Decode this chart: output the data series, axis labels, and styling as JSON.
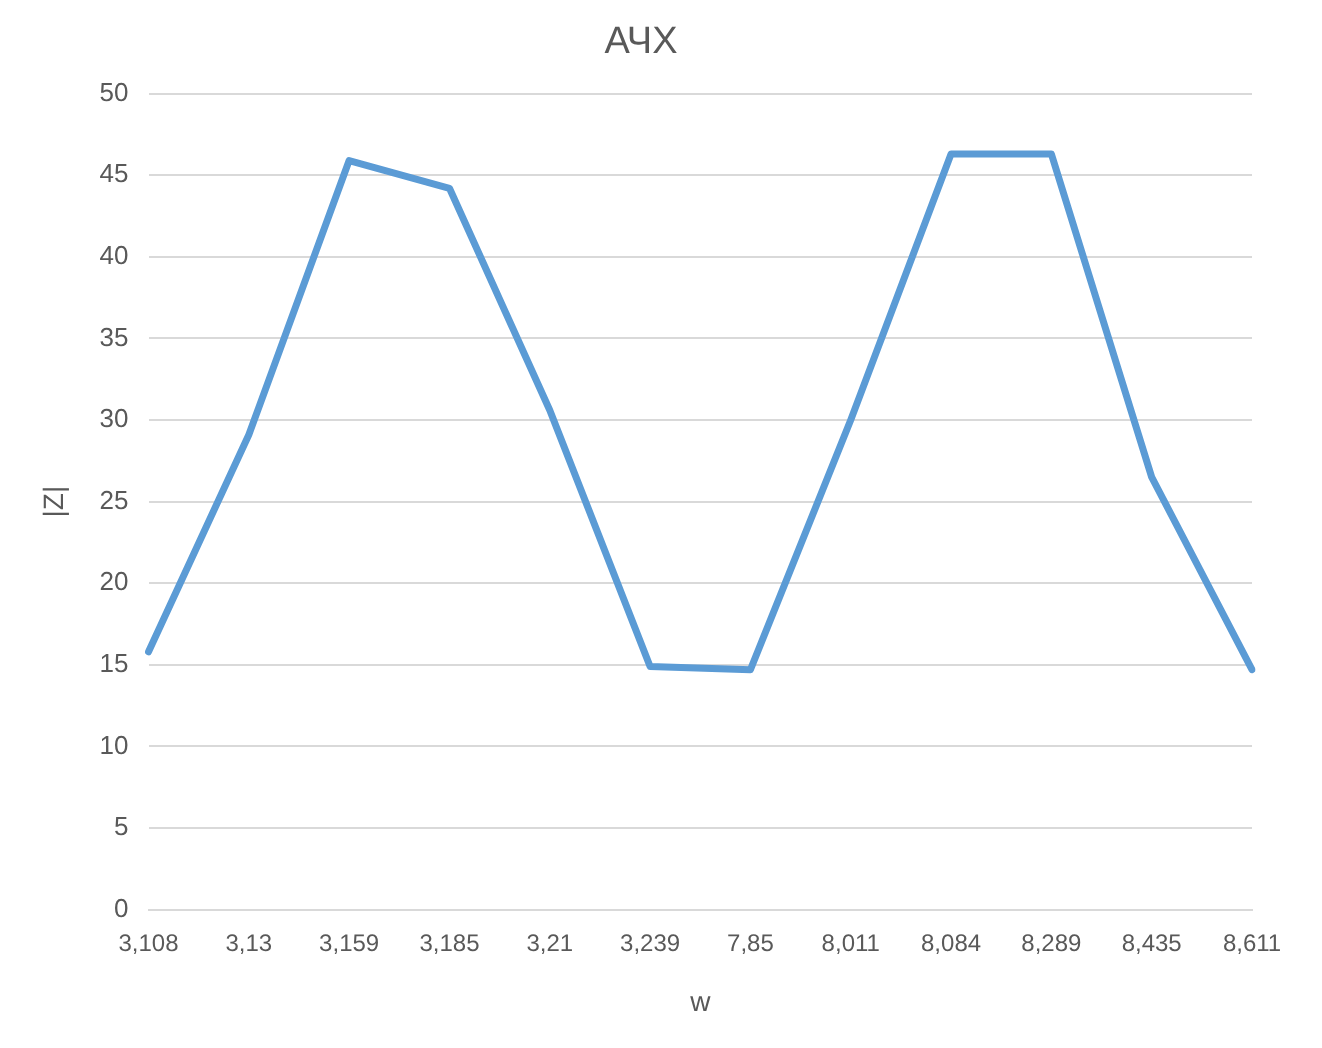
{
  "chart_data": {
    "type": "line",
    "title": "АЧХ",
    "xlabel": "w",
    "ylabel": "|Z|",
    "categories": [
      "3,108",
      "3,13",
      "3,159",
      "3,185",
      "3,21",
      "3,239",
      "7,85",
      "8,011",
      "8,084",
      "8,289",
      "8,435",
      "8,611"
    ],
    "series": [
      {
        "color": "#5b9bd5",
        "values": [
          15.8,
          29.1,
          45.9,
          44.2,
          30.6,
          14.9,
          14.7,
          30,
          46.3,
          46.3,
          26.5,
          14.7
        ]
      }
    ],
    "ylim": [
      0,
      50
    ],
    "yticks": [
      0,
      5,
      10,
      15,
      20,
      25,
      30,
      35,
      40,
      45,
      50
    ],
    "grid": "y",
    "legend": false,
    "marker": "none",
    "line_style": "solid"
  }
}
